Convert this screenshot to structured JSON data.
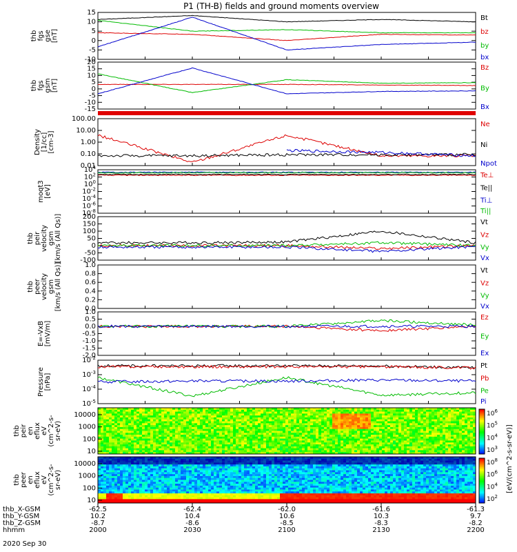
{
  "title": "P1 (TH-B) fields and ground moments overview",
  "date_label": "2020 Sep 30",
  "bottom_axis": {
    "row_labels": [
      "thb_X-GSM",
      "thb_Y-GSM",
      "thb_Z-GSM",
      "hhmm"
    ],
    "ticks": [
      {
        "values": [
          "-62.5",
          "10.2",
          "-8.7",
          "2000"
        ]
      },
      {
        "values": [
          "-62.4",
          "10.4",
          "-8.6",
          "2030"
        ]
      },
      {
        "values": [
          "-62.0",
          "10.6",
          "-8.5",
          "2100"
        ]
      },
      {
        "values": [
          "-61.6",
          "10.3",
          "-8.3",
          "2130"
        ]
      },
      {
        "values": [
          "-61.3",
          "9.7",
          "-8.2",
          "2200"
        ]
      }
    ]
  },
  "colorbar": {
    "label": "[eV/(cm^2-s-sr-eV)]",
    "ion_ticks": [
      "10^6",
      "10^5",
      "10^4",
      "10^3"
    ],
    "electron_ticks": [
      "10^8",
      "10^6",
      "10^4",
      "10^2"
    ]
  },
  "chart_data": [
    {
      "type": "line",
      "panel": "fgs_gse",
      "ylabel_lines": [
        "thb",
        "fgs",
        "gse",
        "[nT]"
      ],
      "ylim": [
        -15,
        15
      ],
      "y_tick_labels": [
        "15",
        "10",
        "5",
        "0",
        "-5",
        "-10"
      ],
      "x": [
        "2000",
        "2030",
        "2100",
        "2130",
        "2200"
      ],
      "series": [
        {
          "name": "Bt",
          "color": "#000000",
          "values": [
            10.5,
            13.0,
            9.0,
            10.5,
            9.0
          ]
        },
        {
          "name": "bz",
          "color": "#dd0000",
          "values": [
            2.0,
            1.0,
            -3.0,
            1.0,
            0.5
          ]
        },
        {
          "name": "by",
          "color": "#00bb00",
          "values": [
            10.0,
            3.0,
            4.0,
            2.0,
            2.0
          ]
        },
        {
          "name": "bx",
          "color": "#0000cc",
          "values": [
            -7.0,
            12.0,
            -9.0,
            -5.5,
            -4.0
          ]
        }
      ]
    },
    {
      "type": "line",
      "panel": "fgs_gsm",
      "ylabel_lines": [
        "thb",
        "fgs",
        "gsm",
        "[nT]"
      ],
      "ylim": [
        -20,
        20
      ],
      "y_tick_labels": [
        "20",
        "15",
        "10",
        "5",
        "0",
        "-5",
        "-10",
        "-15"
      ],
      "x": [
        "2000",
        "2030",
        "2100",
        "2130",
        "2200"
      ],
      "series": [
        {
          "name": "Bz",
          "color": "#dd0000",
          "values": [
            1.0,
            1.0,
            1.0,
            0.5,
            0.0
          ]
        },
        {
          "name": "By",
          "color": "#00bb00",
          "values": [
            10.0,
            -6.0,
            5.0,
            2.0,
            2.5
          ]
        },
        {
          "name": "Bx",
          "color": "#0000cc",
          "values": [
            -7.0,
            15.0,
            -7.0,
            -5.0,
            -4.5
          ]
        }
      ]
    },
    {
      "type": "line",
      "panel": "density",
      "scale": "log",
      "ylabel_lines": [
        "Density",
        "[1/cc]",
        "[cm-3]"
      ],
      "ylim": [
        0.005,
        100
      ],
      "y_tick_labels": [
        "100.00",
        "10.00",
        "1.00",
        "0.10",
        "0.01"
      ],
      "x": [
        "2000",
        "2030",
        "2100",
        "2130",
        "2200"
      ],
      "series": [
        {
          "name": "Ne",
          "color": "#dd0000",
          "values": [
            3.0,
            0.01,
            3.0,
            0.04,
            0.04
          ]
        },
        {
          "name": "Ni",
          "color": "#000000",
          "values": [
            0.04,
            0.04,
            0.05,
            0.05,
            0.05
          ]
        },
        {
          "name": "Npot",
          "color": "#0000cc",
          "values": [
            null,
            null,
            0.12,
            0.08,
            0.04
          ]
        }
      ]
    },
    {
      "type": "line",
      "panel": "temperature",
      "scale": "log",
      "ylabel_lines": [
        "moqt3",
        "[eV]"
      ],
      "ylim": [
        1e-08,
        10000
      ],
      "y_tick_labels": [
        "10^4",
        "10^2",
        "10^0",
        "10^-2",
        "10^-4",
        "10^-6",
        "10^-8"
      ],
      "x": [
        "2000",
        "2030",
        "2100",
        "2130",
        "2200"
      ],
      "series": [
        {
          "name": "Te⊥",
          "color": "#dd0000",
          "values": [
            300,
            300,
            300,
            300,
            300
          ]
        },
        {
          "name": "Te||",
          "color": "#000000",
          "values": [
            500,
            500,
            500,
            500,
            500
          ]
        },
        {
          "name": "Ti⊥",
          "color": "#0000cc",
          "values": [
            2000,
            2000,
            2000,
            2000,
            2000
          ]
        },
        {
          "name": "Ti||",
          "color": "#00bb00",
          "values": [
            1500,
            1500,
            1500,
            1500,
            1500
          ]
        }
      ]
    },
    {
      "type": "line",
      "panel": "peir_velocity",
      "ylabel_lines": [
        "thb",
        "peir",
        "velocity",
        "gsm",
        "[km/s (All Qs)]"
      ],
      "ylim": [
        -100,
        200
      ],
      "y_tick_labels": [
        "200",
        "150",
        "100",
        "50",
        "0",
        "-50",
        "-100"
      ],
      "x": [
        "2000",
        "2030",
        "2100",
        "2130",
        "2200"
      ],
      "series": [
        {
          "name": "Vt",
          "color": "#000000",
          "values": [
            20,
            20,
            25,
            100,
            20
          ]
        },
        {
          "name": "Vz",
          "color": "#dd0000",
          "values": [
            0,
            0,
            0,
            -20,
            0
          ]
        },
        {
          "name": "Vy",
          "color": "#00bb00",
          "values": [
            0,
            0,
            0,
            20,
            0
          ]
        },
        {
          "name": "Vx",
          "color": "#0000cc",
          "values": [
            -10,
            -10,
            -10,
            -40,
            -5
          ]
        }
      ]
    },
    {
      "type": "line",
      "panel": "peer_velocity",
      "ylabel_lines": [
        "thb",
        "peer",
        "velocity",
        "gsm",
        "[km/s (All Qs)]"
      ],
      "ylim": [
        0,
        1
      ],
      "y_tick_labels": [
        "1.0",
        "0.8",
        "0.6",
        "0.4",
        "0.2",
        "0.0"
      ],
      "x": [],
      "series": [
        {
          "name": "Vt",
          "color": "#000000",
          "values": []
        },
        {
          "name": "Vz",
          "color": "#dd0000",
          "values": []
        },
        {
          "name": "Vy",
          "color": "#00bb00",
          "values": []
        },
        {
          "name": "Vx",
          "color": "#0000cc",
          "values": []
        }
      ]
    },
    {
      "type": "line",
      "panel": "efield",
      "ylabel_lines": [
        "E=-VxB",
        "[mV/m]"
      ],
      "ylim": [
        -2.0,
        1.0
      ],
      "y_tick_labels": [
        "1.0",
        "0.5",
        "0.0",
        "-0.5",
        "-1.0",
        "-1.5",
        "-2.0"
      ],
      "x": [
        "2000",
        "2030",
        "2100",
        "2130",
        "2200"
      ],
      "series": [
        {
          "name": "Ez",
          "color": "#dd0000",
          "values": [
            0.0,
            0.0,
            0.0,
            -0.3,
            0.0
          ]
        },
        {
          "name": "Ey",
          "color": "#00bb00",
          "values": [
            0.0,
            0.0,
            0.0,
            0.4,
            0.1
          ]
        },
        {
          "name": "Ex",
          "color": "#0000cc",
          "values": [
            0.0,
            0.0,
            0.0,
            0.0,
            0.0
          ]
        }
      ]
    },
    {
      "type": "line",
      "panel": "pressure",
      "scale": "log",
      "ylabel_lines": [
        "Pressure",
        "[nPa]"
      ],
      "ylim": [
        1e-05,
        0.1
      ],
      "y_tick_labels": [
        "10^-2",
        "10^-3",
        "10^-4",
        "10^-5"
      ],
      "x": [
        "2000",
        "2030",
        "2100",
        "2130",
        "2200"
      ],
      "series": [
        {
          "name": "Pt",
          "color": "#000000",
          "values": [
            0.03,
            0.03,
            0.03,
            0.03,
            0.02
          ]
        },
        {
          "name": "Pb",
          "color": "#dd0000",
          "values": [
            0.025,
            0.025,
            0.025,
            0.025,
            0.02
          ]
        },
        {
          "name": "Pe",
          "color": "#00bb00",
          "values": [
            0.0025,
            5e-05,
            0.0025,
            6e-05,
            0.0001
          ]
        },
        {
          "name": "Pi",
          "color": "#0000cc",
          "values": [
            0.001,
            0.0012,
            0.0012,
            0.0015,
            0.0012
          ]
        }
      ]
    },
    {
      "type": "heatmap",
      "panel": "peir_spectrogram",
      "ylabel_lines": [
        "thb",
        "peir",
        "en",
        "eflux",
        "eV",
        "(cm^2-s-",
        "sr-eV)"
      ],
      "y_tick_labels": [
        "10000",
        "1000",
        "100",
        "10"
      ],
      "note": "ion energy flux, mostly green/cyan with red-orange enhancement near 2130"
    },
    {
      "type": "heatmap",
      "panel": "peer_spectrogram",
      "ylabel_lines": [
        "thb",
        "peer",
        "en",
        "eflux",
        "eV",
        "(cm^2-s-",
        "sr-eV)"
      ],
      "y_tick_labels": [
        "10000",
        "1000",
        "100",
        "10"
      ],
      "note": "electron energy flux, blue/cyan at high energy, red at low energy after 2100"
    }
  ]
}
